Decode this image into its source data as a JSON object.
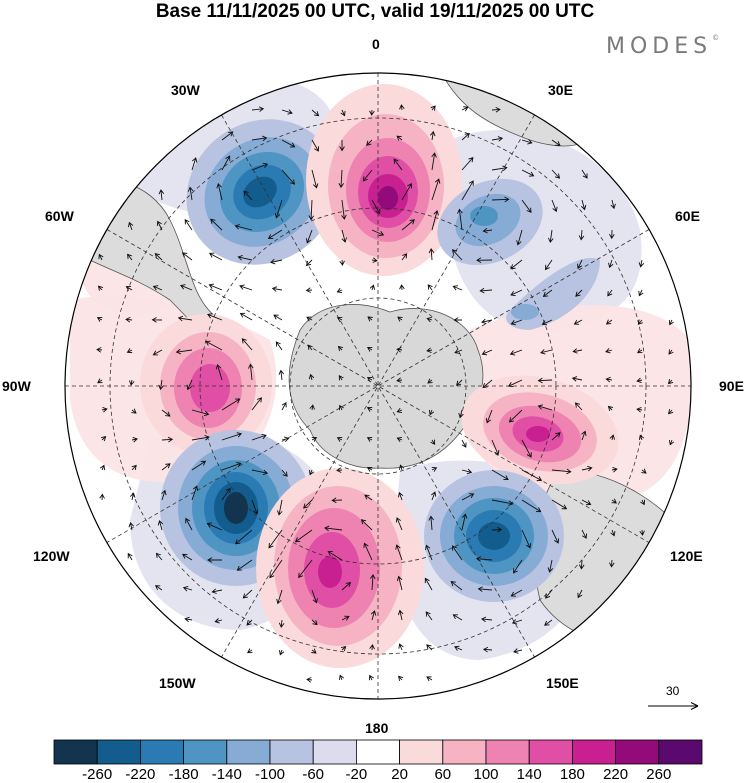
{
  "title": "Base 11/11/2025 00 UTC, valid 19/11/2025 00 UTC",
  "brand": "MODES",
  "brand_mark": "©",
  "labels": {
    "lon_0": "0",
    "lon_30e": "30E",
    "lon_60e": "60E",
    "lon_90e": "90E",
    "lon_120e": "120E",
    "lon_150e": "150E",
    "lon_180": "180",
    "lon_150w": "150W",
    "lon_120w": "120W",
    "lon_90w": "90W",
    "lon_60w": "60W",
    "lon_30w": "30W"
  },
  "reference_vector": "30",
  "colorbar": {
    "labels": [
      "-260",
      "-220",
      "-180",
      "-140",
      "-100",
      "-60",
      "-20",
      "20",
      "60",
      "100",
      "140",
      "180",
      "220",
      "260"
    ],
    "colors": [
      "#12344f",
      "#125d8e",
      "#2a7bb3",
      "#4f95c3",
      "#86abd4",
      "#b7c3e0",
      "#dcdcee",
      "#ffffff",
      "#fadadb",
      "#f6b3c4",
      "#ee83b2",
      "#e04fa5",
      "#c81f91",
      "#930a7a",
      "#5a0a6e"
    ]
  },
  "colors": {
    "land": "#d8d8d8",
    "ocean": "#ffffff",
    "coast": "#555555",
    "grid": "#333333"
  }
}
